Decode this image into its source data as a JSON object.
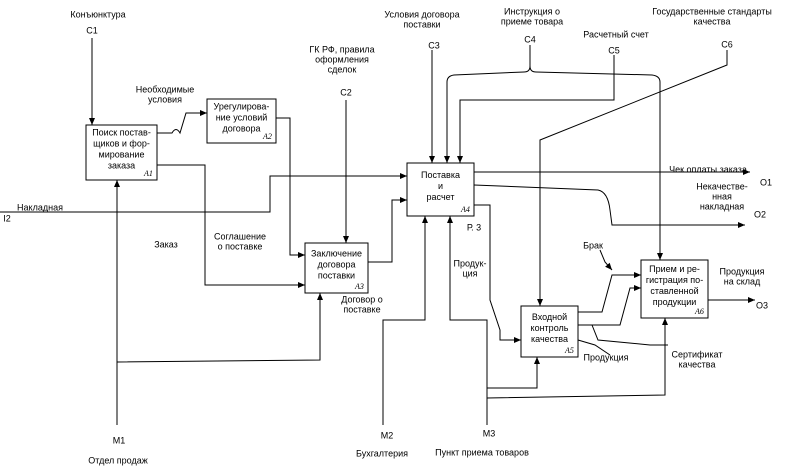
{
  "boxes": [
    {
      "lines": [
        "Поиск постав-",
        "щиков и фор-",
        "мирование",
        "заказа"
      ],
      "id": "A1"
    },
    {
      "lines": [
        "Урегулирова-",
        "ние условий",
        "договора"
      ],
      "id": "A2"
    },
    {
      "lines": [
        "Заключение",
        "договора",
        "поставки"
      ],
      "id": "A3"
    },
    {
      "lines": [
        "Поставка",
        "и",
        "расчет"
      ],
      "id": "A4"
    },
    {
      "lines": [
        "Входной",
        "контроль",
        "качества"
      ],
      "id": "A5"
    },
    {
      "lines": [
        "Прием и ре-",
        "гистрация по-",
        "ставленной",
        "продукции"
      ],
      "id": "A6"
    }
  ],
  "labels": [
    {
      "lines": [
        "Конъюнктура"
      ],
      "code": "C1"
    },
    {
      "lines": [
        "ГК РФ, правила",
        "оформления",
        "сделок"
      ],
      "code": "C2"
    },
    {
      "lines": [
        "Условия договора",
        "поставки"
      ],
      "code": "C3"
    },
    {
      "lines": [
        "Инструкция о",
        "приеме товара"
      ],
      "code": "C4"
    },
    {
      "lines": [
        "Расчетный счет"
      ],
      "code": "C5"
    },
    {
      "lines": [
        "Государственные стандарты",
        "качества"
      ],
      "code": "C6"
    },
    {
      "lines": [
        "Накладная"
      ],
      "code": "I2"
    },
    {
      "lines": [
        "Чек оплаты заказа"
      ],
      "code": "O1"
    },
    {
      "lines": [
        "Некачестве-",
        "нная",
        "накладная"
      ],
      "code": "O2"
    },
    {
      "lines": [
        "Продукция",
        "на склад"
      ],
      "code": "O3"
    },
    {
      "lines": [
        "Отдел продаж"
      ],
      "code": "M1"
    },
    {
      "lines": [
        "Бухгалтерия"
      ],
      "code": "M2"
    },
    {
      "lines": [
        "Пункт приема товаров"
      ],
      "code": "M3"
    }
  ],
  "arrow_labels": [
    [
      "Необходимые",
      "условия"
    ],
    [
      "Заказ"
    ],
    [
      "Соглашение",
      "о поставке"
    ],
    [
      "Договор о",
      "поставке"
    ],
    [
      "Р. 3"
    ],
    [
      "Продук-",
      "ция"
    ],
    [
      "Брак"
    ],
    [
      "Продукция"
    ],
    [
      "Сертификат",
      "качества"
    ]
  ]
}
